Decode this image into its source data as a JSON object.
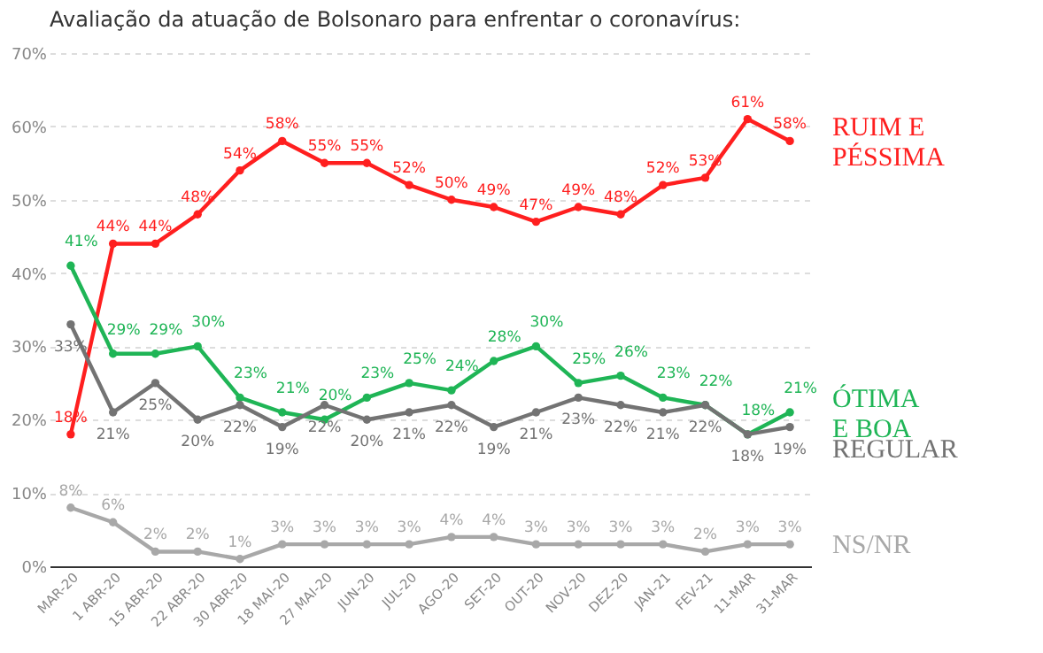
{
  "chart_data": {
    "type": "line",
    "title": "Avaliação da atuação de Bolsonaro para enfrentar o coronavírus:",
    "categories": [
      "MAR-20",
      "1 ABR-20",
      "15 ABR-20",
      "22 ABR-20",
      "30 ABR-20",
      "18 MAI-20",
      "27 MAI-20",
      "JUN-20",
      "JUL-20",
      "AGO-20",
      "SET-20",
      "OUT-20",
      "NOV-20",
      "DEZ-20",
      "JAN-21",
      "FEV-21",
      "11-MAR",
      "31-MAR"
    ],
    "series": [
      {
        "name": "RUIM E\nPÉSSIMA",
        "color": "#ff1f1f",
        "values": [
          18,
          44,
          44,
          48,
          54,
          58,
          55,
          55,
          52,
          50,
          49,
          47,
          49,
          48,
          52,
          53,
          61,
          58
        ],
        "value_labels": [
          "18%",
          "44%",
          "44%",
          "48%",
          "54%",
          "58%",
          "55%",
          "55%",
          "52%",
          "50%",
          "49%",
          "47%",
          "49%",
          "48%",
          "52%",
          "53%",
          "61%",
          "58%"
        ]
      },
      {
        "name": "ÓTIMA\nE BOA",
        "color": "#1fb556",
        "values": [
          41,
          29,
          29,
          30,
          23,
          21,
          20,
          23,
          25,
          24,
          28,
          30,
          25,
          26,
          23,
          22,
          18,
          21
        ],
        "value_labels": [
          "41%",
          "29%",
          "29%",
          "30%",
          "23%",
          "21%",
          "20%",
          "23%",
          "25%",
          "24%",
          "28%",
          "30%",
          "25%",
          "26%",
          "23%",
          "22%",
          "18%",
          "21%"
        ]
      },
      {
        "name": "REGULAR",
        "color": "#737373",
        "values": [
          33,
          21,
          25,
          20,
          22,
          19,
          22,
          20,
          21,
          22,
          19,
          21,
          23,
          22,
          21,
          22,
          18,
          19
        ],
        "value_labels": [
          "33%",
          "21%",
          "25%",
          "20%",
          "22%",
          "19%",
          "22%",
          "20%",
          "21%",
          "22%",
          "19%",
          "21%",
          "23%",
          "22%",
          "21%",
          "22%",
          "18%",
          "19%"
        ]
      },
      {
        "name": "NS/NR",
        "color": "#a8a8a8",
        "values": [
          8,
          6,
          2,
          2,
          1,
          3,
          3,
          3,
          3,
          4,
          4,
          3,
          3,
          3,
          3,
          2,
          3,
          3
        ],
        "value_labels": [
          "8%",
          "6%",
          "2%",
          "2%",
          "1%",
          "3%",
          "3%",
          "3%",
          "3%",
          "4%",
          "4%",
          "3%",
          "3%",
          "3%",
          "3%",
          "2%",
          "3%",
          "3%"
        ]
      }
    ],
    "ylim": [
      0,
      70
    ],
    "yticks": [
      {
        "value": 0,
        "label": "0%"
      },
      {
        "value": 10,
        "label": "10%"
      },
      {
        "value": 20,
        "label": "20%"
      },
      {
        "value": 30,
        "label": "30%"
      },
      {
        "value": 40,
        "label": "40%"
      },
      {
        "value": 50,
        "label": "50%"
      },
      {
        "value": 60,
        "label": "60%"
      },
      {
        "value": 70,
        "label": "70%"
      }
    ],
    "grid": "y",
    "marker": "circle",
    "line_style": "solid",
    "legend": "right"
  }
}
